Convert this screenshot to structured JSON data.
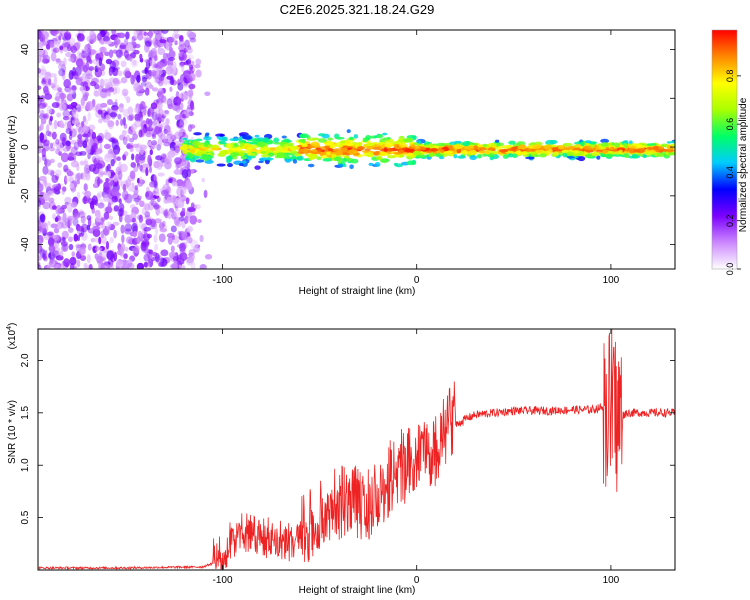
{
  "figure_title": "C2E6.2025.321.18.24.G29",
  "chart_data": [
    {
      "type": "heatmap",
      "title": "C2E6.2025.321.18.24.G29",
      "xlabel": "Height of straight line (km)",
      "ylabel": "Frequency (Hz)",
      "xlim": [
        -195,
        133
      ],
      "ylim": [
        -50,
        48
      ],
      "xticks": [
        -100,
        0,
        100
      ],
      "xtick_labels": [
        "-100",
        "0",
        "100"
      ],
      "yticks": [
        -40,
        -20,
        0,
        20,
        40
      ],
      "ytick_labels": [
        "-40",
        "-20",
        "0",
        "20",
        "40"
      ],
      "colorbar": {
        "label": "Normalized spectral amplitude",
        "range": [
          0.0,
          0.99
        ],
        "ticks": [
          0.0,
          0.2,
          0.4,
          0.6,
          0.8
        ],
        "tick_labels": [
          "0.0",
          "0.2",
          "0.4",
          "0.6",
          "0.8"
        ],
        "colormap": [
          "#ffffff",
          "#cc88ff",
          "#7b00ff",
          "#0000ff",
          "#00ccff",
          "#00ff66",
          "#aaff00",
          "#ffff00",
          "#ff8800",
          "#ff0000"
        ]
      },
      "regions": [
        {
          "name": "noise",
          "x_range": [
            -195,
            -115
          ],
          "freq_range": [
            -50,
            48
          ],
          "amplitude": 0.1
        },
        {
          "name": "tone",
          "x_range": [
            -120,
            133
          ],
          "center_freq_hz": -1,
          "amplitude_range": [
            0.3,
            0.95
          ]
        }
      ]
    },
    {
      "type": "line",
      "xlabel": "Height of straight line (km)",
      "ylabel": "SNR (10 * v/v)",
      "y_exponent_label": "(x10",
      "y_exponent_value": "4",
      "y_exponent_close": ")",
      "xlim": [
        -195,
        133
      ],
      "ylim": [
        0,
        2.3
      ],
      "xticks": [
        -100,
        0,
        100
      ],
      "xtick_labels": [
        "-100",
        "0",
        "100"
      ],
      "yticks": [
        0.5,
        1.0,
        1.5,
        2.0
      ],
      "ytick_labels": [
        "0.5",
        "1.0",
        "1.5",
        "2.0"
      ],
      "series": [
        {
          "name": "SNR",
          "color": "#ee2222",
          "x": [
            -195,
            -150,
            -110,
            -100,
            -95,
            -90,
            -85,
            -80,
            -75,
            -70,
            -65,
            -60,
            -55,
            -50,
            -45,
            -40,
            -35,
            -30,
            -25,
            -20,
            -15,
            -10,
            -5,
            0,
            5,
            10,
            15,
            20,
            25,
            30,
            40,
            50,
            60,
            70,
            80,
            90,
            95,
            98,
            100,
            102,
            104,
            108,
            115,
            125,
            133
          ],
          "y": [
            0.02,
            0.02,
            0.03,
            0.1,
            0.25,
            0.3,
            0.3,
            0.28,
            0.25,
            0.25,
            0.22,
            0.28,
            0.35,
            0.42,
            0.5,
            0.55,
            0.58,
            0.55,
            0.55,
            0.62,
            0.75,
            0.9,
            0.9,
            1.0,
            0.95,
            1.05,
            1.25,
            1.38,
            1.44,
            1.48,
            1.5,
            1.52,
            1.52,
            1.52,
            1.53,
            1.53,
            1.55,
            1.55,
            1.55,
            1.5,
            1.45,
            1.5,
            1.5,
            1.5,
            1.5
          ]
        }
      ]
    }
  ]
}
